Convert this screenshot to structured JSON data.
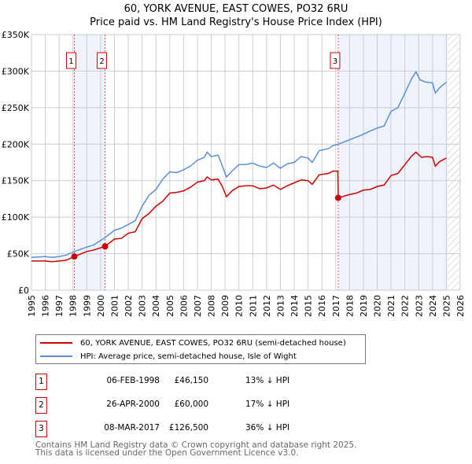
{
  "chart_data": {
    "type": "line",
    "title": "60, YORK AVENUE, EAST COWES, PO32 6RU",
    "subtitle": "Price paid vs. HM Land Registry's House Price Index (HPI)",
    "xlim": [
      1995,
      2026
    ],
    "ylim": [
      0,
      350000
    ],
    "x_ticks": [
      "1995",
      "1996",
      "1997",
      "1998",
      "1999",
      "2000",
      "2001",
      "2002",
      "2003",
      "2004",
      "2005",
      "2006",
      "2007",
      "2008",
      "2009",
      "2010",
      "2011",
      "2012",
      "2013",
      "2014",
      "2015",
      "2016",
      "2017",
      "2018",
      "2019",
      "2020",
      "2021",
      "2022",
      "2023",
      "2024",
      "2025",
      "2026"
    ],
    "y_ticks": [
      {
        "v": 0,
        "l": "£0"
      },
      {
        "v": 50000,
        "l": "£50K"
      },
      {
        "v": 100000,
        "l": "£100K"
      },
      {
        "v": 150000,
        "l": "£150K"
      },
      {
        "v": 200000,
        "l": "£200K"
      },
      {
        "v": 250000,
        "l": "£250K"
      },
      {
        "v": 300000,
        "l": "£300K"
      },
      {
        "v": 350000,
        "l": "£350K"
      }
    ],
    "grid": true,
    "series": [
      {
        "name": "60, YORK AVENUE, EAST COWES, PO32 6RU (semi-detached house)",
        "color": "#cc0000",
        "points": [
          [
            1995,
            40000
          ],
          [
            1996,
            40000
          ],
          [
            1996.5,
            39000
          ],
          [
            1997,
            40000
          ],
          [
            1997.5,
            41000
          ],
          [
            1998.1,
            46150
          ],
          [
            1999,
            53000
          ],
          [
            1999.5,
            55000
          ],
          [
            2000.32,
            60000
          ],
          [
            2001,
            70000
          ],
          [
            2001.5,
            71000
          ],
          [
            2002,
            78000
          ],
          [
            2002.5,
            80000
          ],
          [
            2003,
            98000
          ],
          [
            2003.5,
            105000
          ],
          [
            2004,
            115000
          ],
          [
            2004.5,
            122000
          ],
          [
            2005,
            133000
          ],
          [
            2005.5,
            134000
          ],
          [
            2006,
            136000
          ],
          [
            2006.5,
            141000
          ],
          [
            2007,
            148000
          ],
          [
            2007.5,
            150000
          ],
          [
            2007.7,
            155000
          ],
          [
            2008,
            151000
          ],
          [
            2008.5,
            152000
          ],
          [
            2008.8,
            142000
          ],
          [
            2009.1,
            128000
          ],
          [
            2009.5,
            136000
          ],
          [
            2010,
            142000
          ],
          [
            2010.5,
            143000
          ],
          [
            2011,
            143000
          ],
          [
            2011.5,
            139000
          ],
          [
            2012,
            140000
          ],
          [
            2012.5,
            144000
          ],
          [
            2013,
            138000
          ],
          [
            2013.5,
            143000
          ],
          [
            2014,
            147000
          ],
          [
            2014.5,
            151000
          ],
          [
            2015,
            150000
          ],
          [
            2015.3,
            145000
          ],
          [
            2015.8,
            158000
          ],
          [
            2016.5,
            160000
          ],
          [
            2016.8,
            163000
          ],
          [
            2017.15,
            163000
          ],
          [
            2017.18,
            126500
          ],
          [
            2018,
            131000
          ],
          [
            2018.5,
            133000
          ],
          [
            2019,
            137000
          ],
          [
            2019.5,
            138000
          ],
          [
            2020,
            142000
          ],
          [
            2020.5,
            144000
          ],
          [
            2021,
            157000
          ],
          [
            2021.5,
            160000
          ],
          [
            2022,
            172000
          ],
          [
            2022.5,
            184000
          ],
          [
            2022.8,
            189000
          ],
          [
            2023.2,
            182000
          ],
          [
            2023.6,
            183000
          ],
          [
            2024,
            182000
          ],
          [
            2024.2,
            170000
          ],
          [
            2024.5,
            176000
          ],
          [
            2025,
            181000
          ]
        ]
      },
      {
        "name": "HPI: Average price, semi-detached house, Isle of Wight",
        "color": "#5b8fd6",
        "points": [
          [
            1995,
            45000
          ],
          [
            1996,
            46000
          ],
          [
            1996.5,
            45000
          ],
          [
            1997,
            46000
          ],
          [
            1997.5,
            48000
          ],
          [
            1998.1,
            53000
          ],
          [
            1999,
            59000
          ],
          [
            1999.5,
            62000
          ],
          [
            2000.32,
            72000
          ],
          [
            2001,
            82000
          ],
          [
            2001.5,
            85000
          ],
          [
            2002,
            90000
          ],
          [
            2002.5,
            95000
          ],
          [
            2003,
            115000
          ],
          [
            2003.5,
            130000
          ],
          [
            2004,
            138000
          ],
          [
            2004.5,
            152000
          ],
          [
            2005,
            162000
          ],
          [
            2005.5,
            161000
          ],
          [
            2006,
            165000
          ],
          [
            2006.5,
            170000
          ],
          [
            2007,
            178000
          ],
          [
            2007.5,
            182000
          ],
          [
            2007.7,
            189000
          ],
          [
            2008,
            183000
          ],
          [
            2008.5,
            185000
          ],
          [
            2008.8,
            170000
          ],
          [
            2009.1,
            155000
          ],
          [
            2009.5,
            163000
          ],
          [
            2010,
            172000
          ],
          [
            2010.5,
            172000
          ],
          [
            2011,
            174000
          ],
          [
            2011.5,
            170000
          ],
          [
            2012,
            168000
          ],
          [
            2012.5,
            174000
          ],
          [
            2013,
            167000
          ],
          [
            2013.5,
            173000
          ],
          [
            2014,
            175000
          ],
          [
            2014.5,
            183000
          ],
          [
            2015,
            181000
          ],
          [
            2015.3,
            175000
          ],
          [
            2015.8,
            191000
          ],
          [
            2016.5,
            194000
          ],
          [
            2016.8,
            198000
          ],
          [
            2017.2,
            200000
          ],
          [
            2018,
            206000
          ],
          [
            2018.8,
            212000
          ],
          [
            2019.5,
            218000
          ],
          [
            2020,
            222000
          ],
          [
            2020.5,
            225000
          ],
          [
            2021,
            245000
          ],
          [
            2021.5,
            250000
          ],
          [
            2022,
            270000
          ],
          [
            2022.5,
            290000
          ],
          [
            2022.8,
            299000
          ],
          [
            2023.1,
            288000
          ],
          [
            2023.5,
            285000
          ],
          [
            2024,
            284000
          ],
          [
            2024.2,
            270000
          ],
          [
            2024.5,
            277000
          ],
          [
            2025,
            285000
          ]
        ]
      }
    ],
    "sales": [
      {
        "label": "1",
        "x": 1998.1,
        "value": 46150,
        "date": "06-FEB-1998",
        "price": "£46,150",
        "hpi": "13% ↓ HPI"
      },
      {
        "label": "2",
        "x": 2000.32,
        "value": 60000,
        "date": "26-APR-2000",
        "price": "£60,000",
        "hpi": "17% ↓ HPI"
      },
      {
        "label": "3",
        "x": 2017.18,
        "value": 126500,
        "date": "08-MAR-2017",
        "price": "£126,500",
        "hpi": "36% ↓ HPI"
      }
    ],
    "shaded_ranges": [
      [
        1998.1,
        2000.32
      ],
      [
        2017.18,
        2025.1
      ]
    ],
    "hatched_from": 2025.1,
    "legend_placement": "below"
  },
  "footer": [
    "Contains HM Land Registry data © Crown copyright and database right 2025.",
    "This data is licensed under the Open Government Licence v3.0."
  ]
}
